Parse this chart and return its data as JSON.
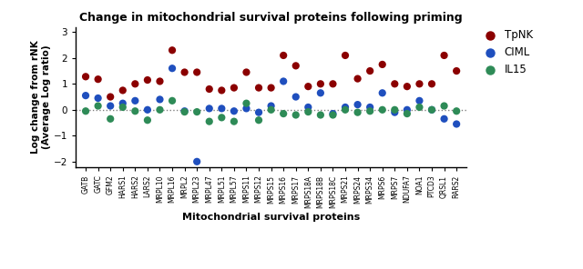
{
  "title": "Change in mitochondrial survival proteins following priming",
  "xlabel": "Mitochondrial survival proteins",
  "ylabel": "Log change from rNK\n(Average Log ratio)",
  "ylim": [
    -2.2,
    3.2
  ],
  "yticks": [
    -2,
    -1,
    0,
    1,
    2,
    3
  ],
  "categories": [
    "GATB",
    "GATC",
    "GFM2",
    "HARS1",
    "HARS2",
    "LARS2",
    "MRPL10",
    "MRPL16",
    "MRPL2",
    "MRPL23",
    "MRPL47",
    "MRPL51",
    "MRPL57",
    "MRPS11",
    "MRPS12",
    "MRPS15",
    "MRPS16",
    "MRPS17",
    "MRPS18A",
    "MRPS18B",
    "MRPS18C",
    "MRPS21",
    "MRPS24",
    "MRPS34",
    "MRPS6",
    "MRPS7",
    "NDUFA7",
    "NOA1",
    "PTCD3",
    "QRSL1",
    "RARS2"
  ],
  "TpNK": [
    1.28,
    1.18,
    0.5,
    0.75,
    1.0,
    1.15,
    1.1,
    2.3,
    1.45,
    1.45,
    0.8,
    0.75,
    0.85,
    1.45,
    0.85,
    0.85,
    2.1,
    1.7,
    0.9,
    1.0,
    1.0,
    2.1,
    1.2,
    1.5,
    1.75,
    1.0,
    0.9,
    1.0,
    1.0,
    2.1,
    1.5
  ],
  "CIML": [
    0.55,
    0.45,
    0.15,
    0.25,
    0.35,
    0.0,
    0.4,
    1.6,
    -0.05,
    -2.0,
    0.05,
    0.05,
    -0.05,
    0.05,
    -0.1,
    0.15,
    1.1,
    0.5,
    0.1,
    0.65,
    -0.15,
    0.1,
    0.2,
    0.1,
    0.65,
    -0.1,
    0.0,
    0.35,
    0.0,
    -0.35,
    -0.55
  ],
  "IL15": [
    -0.05,
    0.15,
    -0.35,
    0.1,
    -0.05,
    -0.4,
    0.0,
    0.35,
    -0.08,
    -0.08,
    -0.45,
    -0.3,
    -0.45,
    0.25,
    -0.4,
    0.0,
    -0.15,
    -0.2,
    -0.08,
    -0.2,
    -0.2,
    0.0,
    -0.1,
    -0.05,
    0.0,
    0.0,
    -0.15,
    0.1,
    0.0,
    0.15,
    -0.05
  ],
  "color_TpNK": "#8B0000",
  "color_CIML": "#1F4FBE",
  "color_IL15": "#2E8B57",
  "marker_size": 35,
  "background_color": "#ffffff",
  "dotted_line_y": 0
}
